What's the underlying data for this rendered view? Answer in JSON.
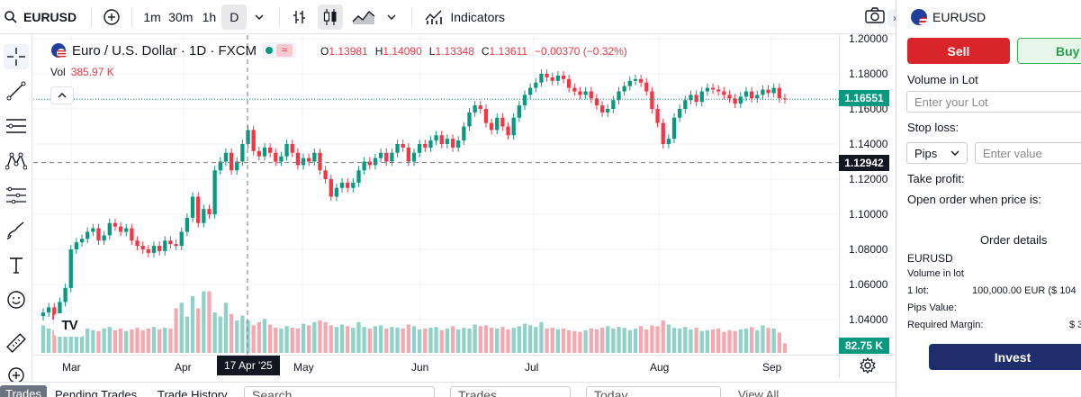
{
  "toolbar": {
    "symbol": "EURUSD",
    "intervals": [
      "1m",
      "30m",
      "1h",
      "D"
    ],
    "active_interval": "D",
    "indicators_label": "Indicators"
  },
  "legend": {
    "title": "Euro / U.S. Dollar · 1D · FXCM",
    "ohlc": [
      {
        "k": "O",
        "v": "1.13981"
      },
      {
        "k": "H",
        "v": "1.14090"
      },
      {
        "k": "L",
        "v": "1.13348"
      },
      {
        "k": "C",
        "v": "1.13611"
      }
    ],
    "change": "−0.00370 (−0.32%)",
    "vol_label": "Vol",
    "vol_value": "385.97 K"
  },
  "chart_data": {
    "type": "candlestick",
    "yticks": [
      "1.20000",
      "1.18000",
      "1.16000",
      "1.14000",
      "1.12000",
      "1.10000",
      "1.08000",
      "1.06000",
      "1.04000"
    ],
    "ylim": [
      1.02,
      1.2
    ],
    "xticks": [
      "Mar",
      "Apr",
      "May",
      "Jun",
      "Jul",
      "Aug",
      "Sep"
    ],
    "crosshair_date": "17 Apr '25",
    "crosshair_price": "1.12942",
    "last_price": "1.16551",
    "volume_last": "82.75 K",
    "closes": [
      1.044,
      1.047,
      1.04,
      1.05,
      1.058,
      1.08,
      1.084,
      1.086,
      1.09,
      1.092,
      1.085,
      1.088,
      1.095,
      1.093,
      1.09,
      1.092,
      1.085,
      1.082,
      1.08,
      1.078,
      1.082,
      1.079,
      1.085,
      1.083,
      1.082,
      1.09,
      1.098,
      1.11,
      1.095,
      1.103,
      1.1,
      1.125,
      1.13,
      1.135,
      1.125,
      1.13,
      1.14,
      1.148,
      1.136,
      1.133,
      1.138,
      1.135,
      1.13,
      1.133,
      1.14,
      1.135,
      1.128,
      1.132,
      1.13,
      1.135,
      1.125,
      1.12,
      1.11,
      1.115,
      1.118,
      1.115,
      1.118,
      1.125,
      1.13,
      1.128,
      1.132,
      1.135,
      1.13,
      1.135,
      1.14,
      1.138,
      1.13,
      1.135,
      1.14,
      1.138,
      1.142,
      1.145,
      1.14,
      1.143,
      1.138,
      1.142,
      1.15,
      1.158,
      1.162,
      1.16,
      1.152,
      1.148,
      1.155,
      1.15,
      1.145,
      1.155,
      1.162,
      1.168,
      1.172,
      1.175,
      1.18,
      1.178,
      1.176,
      1.179,
      1.177,
      1.172,
      1.17,
      1.168,
      1.17,
      1.166,
      1.162,
      1.158,
      1.16,
      1.165,
      1.17,
      1.173,
      1.176,
      1.177,
      1.175,
      1.17,
      1.16,
      1.152,
      1.14,
      1.143,
      1.155,
      1.16,
      1.165,
      1.168,
      1.164,
      1.17,
      1.172,
      1.171,
      1.17,
      1.168,
      1.166,
      1.163,
      1.167,
      1.17,
      1.166,
      1.168,
      1.171,
      1.169,
      1.172,
      1.166,
      1.1655
    ],
    "volumes": [
      0.34,
      0.3,
      0.28,
      0.32,
      0.36,
      0.3,
      0.32,
      0.34,
      0.3,
      0.28,
      0.27,
      0.3,
      0.32,
      0.28,
      0.3,
      0.27,
      0.29,
      0.31,
      0.28,
      0.3,
      0.32,
      0.29,
      0.31,
      0.3,
      0.55,
      0.62,
      0.45,
      0.7,
      0.55,
      0.76,
      0.76,
      0.5,
      0.45,
      0.62,
      0.48,
      0.4,
      0.46,
      0.4,
      0.34,
      0.38,
      0.42,
      0.35,
      0.31,
      0.3,
      0.33,
      0.31,
      0.3,
      0.36,
      0.34,
      0.38,
      0.4,
      0.38,
      0.34,
      0.32,
      0.35,
      0.33,
      0.31,
      0.38,
      0.32,
      0.3,
      0.33,
      0.34,
      0.3,
      0.32,
      0.31,
      0.3,
      0.35,
      0.33,
      0.29,
      0.3,
      0.31,
      0.32,
      0.28,
      0.3,
      0.33,
      0.29,
      0.31,
      0.3,
      0.35,
      0.33,
      0.34,
      0.31,
      0.3,
      0.32,
      0.29,
      0.31,
      0.33,
      0.36,
      0.34,
      0.32,
      0.38,
      0.3,
      0.31,
      0.29,
      0.3,
      0.28,
      0.27,
      0.26,
      0.28,
      0.3,
      0.29,
      0.31,
      0.33,
      0.3,
      0.32,
      0.31,
      0.28,
      0.3,
      0.33,
      0.29,
      0.34,
      0.33,
      0.4,
      0.35,
      0.31,
      0.3,
      0.32,
      0.29,
      0.31,
      0.27,
      0.28,
      0.29,
      0.3,
      0.26,
      0.28,
      0.27,
      0.29,
      0.3,
      0.32,
      0.28,
      0.34,
      0.31,
      0.3,
      0.25,
      0.12
    ]
  },
  "bottom": {
    "tabs": [
      "Trades",
      "Pending Trades",
      "Trade History"
    ],
    "search_placeholder": "Search",
    "filter1": "Trades",
    "filter2": "Today",
    "view_all": "View All"
  },
  "panel": {
    "symbol": "EURUSD",
    "sell": "Sell",
    "buy": "Buy",
    "volume_label": "Volume in Lot",
    "volume_placeholder": "Enter your Lot",
    "stoploss_label": "Stop loss:",
    "stoploss_unit": "Pips",
    "stoploss_placeholder": "Enter value",
    "takeprofit_label": "Take profit:",
    "open_order_label": "Open order when price is:",
    "details_title": "Order details",
    "details_symbol": "EURUSD",
    "details_volume": "Volume in lot",
    "lot_label": "1 lot:",
    "lot_value": "100,000.00 EUR ($ 104",
    "pips_label": "Pips Value:",
    "margin_label": "Required Margin:",
    "margin_value": "$ 3",
    "invest": "Invest"
  },
  "colors": {
    "up": "#089981",
    "down": "#f23645",
    "up_vol": "#8fd3c8",
    "down_vol": "#f4a9b0"
  }
}
